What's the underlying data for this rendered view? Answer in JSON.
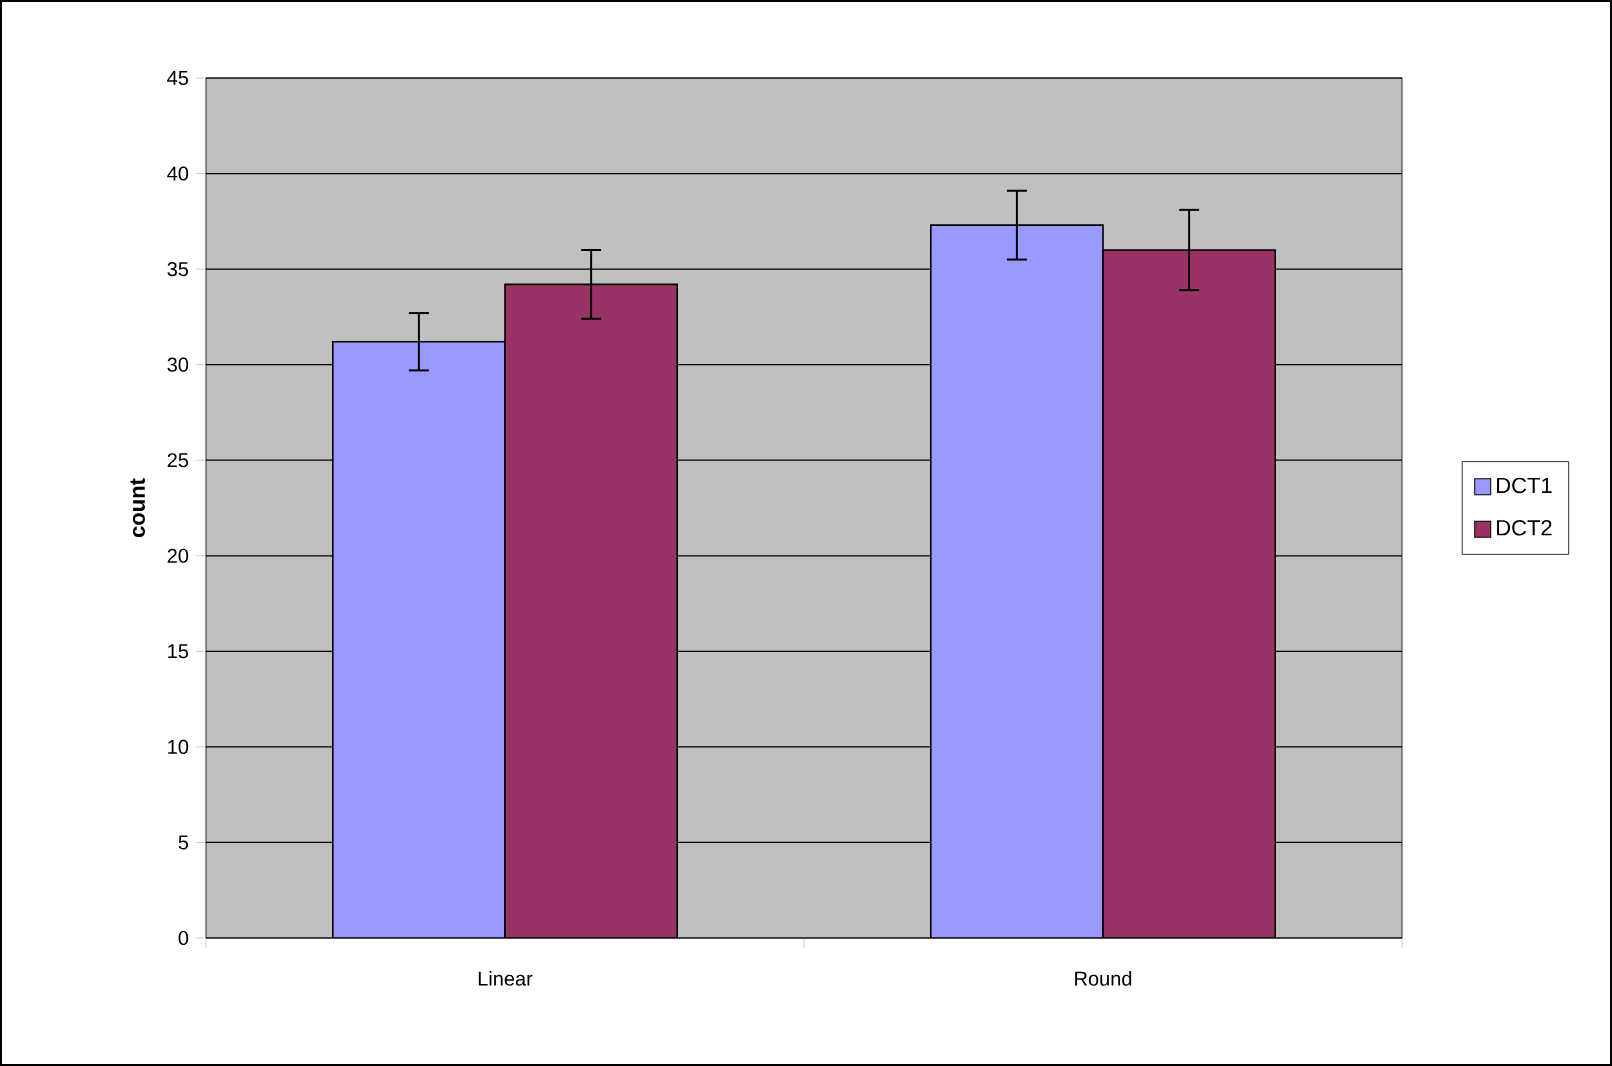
{
  "chart_data": {
    "type": "bar",
    "ylabel": "count",
    "categories": [
      "Linear",
      "Round"
    ],
    "series": [
      {
        "name": "DCT1",
        "color": "#9999ff",
        "values": [
          31.2,
          37.3
        ],
        "errors": [
          1.5,
          1.8
        ]
      },
      {
        "name": "DCT2",
        "color": "#993366",
        "values": [
          34.2,
          36.0
        ],
        "errors": [
          1.8,
          2.1
        ]
      }
    ],
    "ylim": [
      0,
      45
    ],
    "yticks": [
      0,
      5,
      10,
      15,
      20,
      25,
      30,
      35,
      40,
      45
    ],
    "grid": "y",
    "legend": "right"
  }
}
